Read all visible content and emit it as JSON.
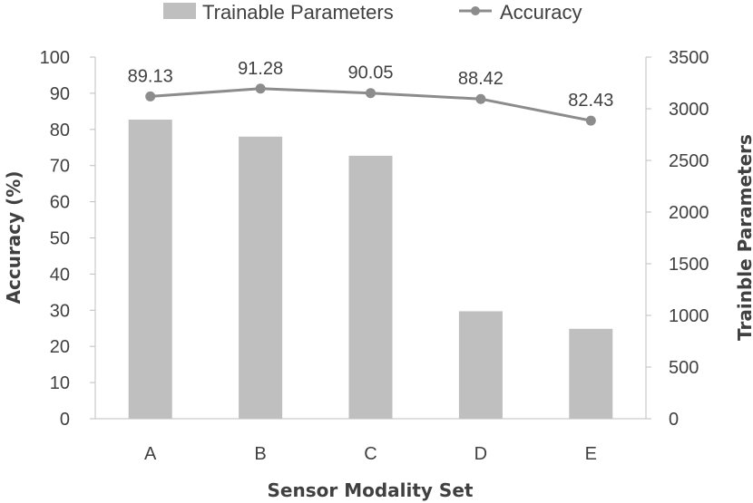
{
  "chart_data": {
    "type": "bar",
    "categories": [
      "A",
      "B",
      "C",
      "D",
      "E"
    ],
    "xlabel": "Sensor Modality Set",
    "ylabel_left": "Accuracy (%)",
    "ylabel_right": "Trainble Parameters",
    "ylim_left": [
      0,
      100
    ],
    "yticks_left": [
      0,
      10,
      20,
      30,
      40,
      50,
      60,
      70,
      80,
      90,
      100
    ],
    "ylim_right": [
      0,
      3500
    ],
    "yticks_right": [
      0,
      500,
      1000,
      1500,
      2000,
      2500,
      3000,
      3500
    ],
    "grid": false,
    "legend_position": "top",
    "series": [
      {
        "name": "Trainable Parameters",
        "type": "bar",
        "axis": "right",
        "color": "#bfbfbf",
        "values": [
          2895,
          2730,
          2545,
          1040,
          870
        ]
      },
      {
        "name": "Accuracy",
        "type": "line",
        "axis": "left",
        "color": "#8c8c8c",
        "values": [
          89.13,
          91.28,
          90.05,
          88.42,
          82.43
        ],
        "data_labels": [
          "89.13",
          "91.28",
          "90.05",
          "88.42",
          "82.43"
        ]
      }
    ]
  }
}
